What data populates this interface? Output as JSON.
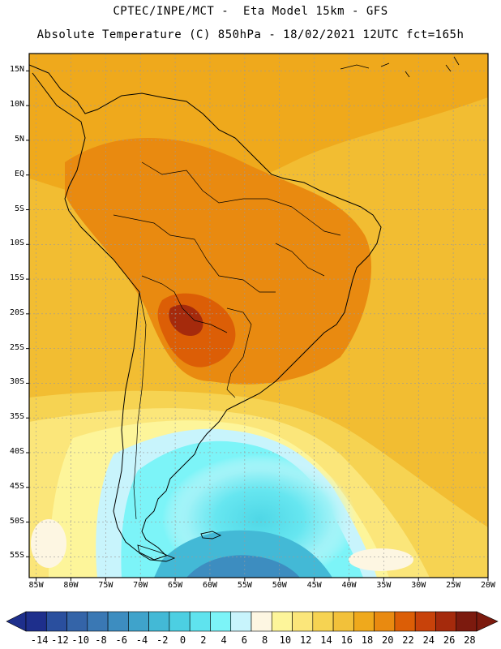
{
  "header": {
    "title_line1": "CPTEC/INPE/MCT -  Eta Model 15km - GFS",
    "title_line2": "Absolute Temperature (C) 850hPa - 18/02/2021 12UTC fct=165h"
  },
  "map": {
    "lon_range": [
      -86,
      -20
    ],
    "lat_range": [
      17.5,
      -58
    ],
    "lon_ticks": [
      "85W",
      "80W",
      "75W",
      "70W",
      "65W",
      "60W",
      "55W",
      "50W",
      "45W",
      "40W",
      "35W",
      "30W",
      "25W",
      "20W"
    ],
    "lat_ticks": [
      "15N",
      "10N",
      "5N",
      "EQ",
      "5S",
      "10S",
      "15S",
      "20S",
      "25S",
      "30S",
      "35S",
      "40S",
      "45S",
      "50S",
      "55S"
    ]
  },
  "colorbar": {
    "labels": [
      "-14",
      "-12",
      "-10",
      "-8",
      "-6",
      "-4",
      "-2",
      "0",
      "2",
      "4",
      "6",
      "8",
      "10",
      "12",
      "14",
      "16",
      "18",
      "20",
      "22",
      "24",
      "26",
      "28"
    ],
    "colors": [
      "#1e2f8c",
      "#2a4f9e",
      "#3464a8",
      "#3a78b4",
      "#3d8dc0",
      "#3fa3cb",
      "#43b9d6",
      "#4ccfe2",
      "#5fe3ee",
      "#7cf4f8",
      "#c8f4fc",
      "#fdf6e2",
      "#fdf59a",
      "#fbe67a",
      "#f6d352",
      "#f2c13a",
      "#efa91c",
      "#e98a10",
      "#dc5e06",
      "#c8420a",
      "#a52a0c",
      "#7c1a0e"
    ],
    "low_color": "#1e2f8c",
    "high_color": "#7c1a0e"
  }
}
